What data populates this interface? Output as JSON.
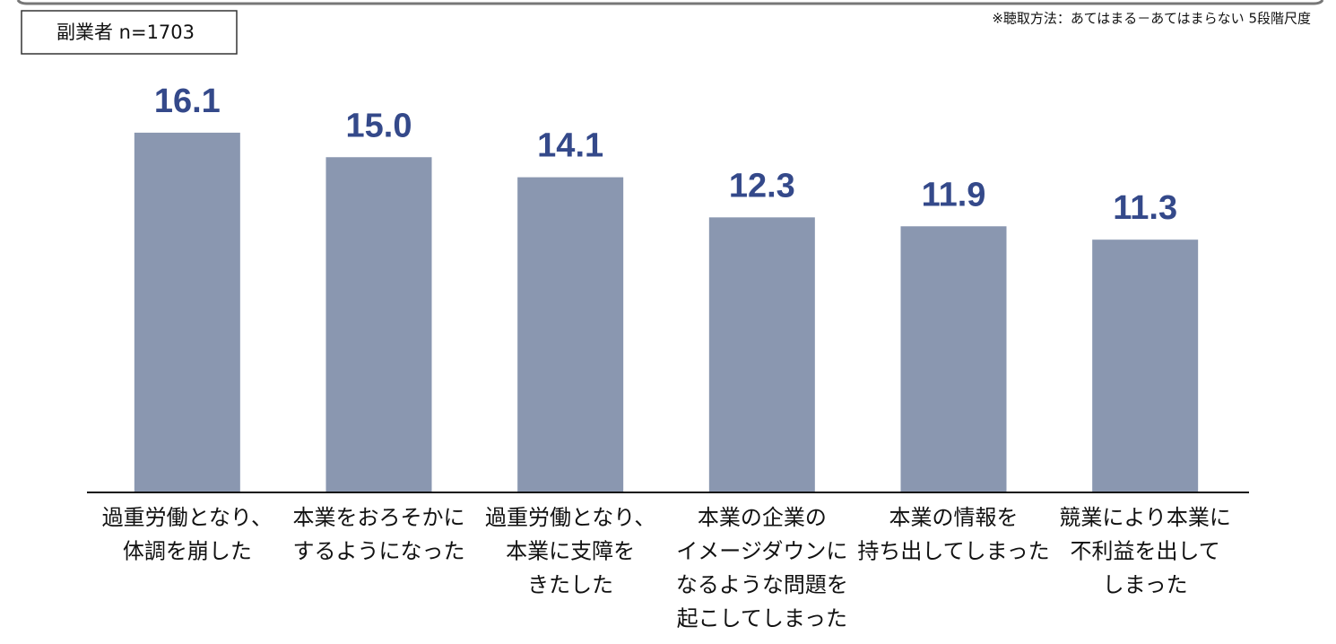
{
  "sample_label": "副業者  n=1703",
  "note": "※聴取方法：あてはまる－あてはまらない 5段階尺度",
  "chart_data": {
    "type": "bar",
    "categories": [
      [
        "過重労働となり、",
        "体調を崩した"
      ],
      [
        "本業をおろそかに",
        "するようになった"
      ],
      [
        "過重労働となり、",
        "本業に支障を",
        "きたした"
      ],
      [
        "本業の企業の",
        "イメージダウンに",
        "なるような問題を",
        "起こしてしまった"
      ],
      [
        "本業の情報を",
        "持ち出してしまった"
      ],
      [
        "競業により本業に",
        "不利益を出して",
        "しまった"
      ]
    ],
    "values": [
      16.1,
      15.0,
      14.1,
      12.3,
      11.9,
      11.3
    ],
    "value_labels": [
      "16.1",
      "15.0",
      "14.1",
      "12.3",
      "11.9",
      "11.3"
    ],
    "color": "#8a97b0",
    "ylim": [
      0,
      20
    ]
  }
}
